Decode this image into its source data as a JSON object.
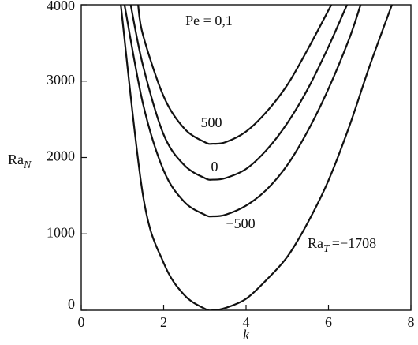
{
  "chart_data": {
    "type": "line",
    "annotation": "Pe = 0,1",
    "xlabel": "k",
    "ylabel": {
      "text": "Ra",
      "subscript": "N"
    },
    "curve_label_prefix": {
      "text": "Ra",
      "subscript": "T",
      "sign": "="
    },
    "series": [
      {
        "name": "500",
        "color": "#111111",
        "x": [
          1.38,
          1.5,
          2,
          2.5,
          3,
          3.2,
          3.5,
          4,
          4.5,
          5,
          5.5,
          6.07
        ],
        "values": [
          4000,
          3600,
          2800,
          2380,
          2200,
          2180,
          2200,
          2340,
          2600,
          2950,
          3420,
          4000
        ]
      },
      {
        "name": "0",
        "color": "#111111",
        "x": [
          1.2,
          1.5,
          2,
          2.5,
          3,
          3.2,
          3.5,
          4,
          4.5,
          5,
          5.5,
          6,
          6.45
        ],
        "values": [
          4000,
          3200,
          2300,
          1900,
          1730,
          1710,
          1730,
          1850,
          2100,
          2450,
          2900,
          3450,
          4000
        ]
      },
      {
        "name": "−500",
        "color": "#111111",
        "x": [
          1.05,
          1.5,
          2,
          2.5,
          3,
          3.2,
          3.5,
          4,
          4.5,
          5,
          5.5,
          6,
          6.5,
          6.78
        ],
        "values": [
          4000,
          2700,
          1830,
          1420,
          1250,
          1230,
          1250,
          1370,
          1580,
          1900,
          2350,
          2900,
          3550,
          4000
        ]
      },
      {
        "name": "−1708",
        "color": "#111111",
        "x": [
          0.96,
          1.5,
          2,
          2.5,
          3,
          3.2,
          3.5,
          4,
          4.5,
          5,
          5.5,
          6,
          6.5,
          7,
          7.54
        ],
        "values": [
          4000,
          1500,
          620,
          200,
          20,
          0,
          30,
          150,
          400,
          700,
          1150,
          1700,
          2400,
          3200,
          4000
        ]
      }
    ],
    "xlim": [
      0,
      8
    ],
    "xticks": [
      0,
      2,
      4,
      6,
      8
    ],
    "ylim": [
      0,
      4000
    ],
    "yticks": [
      0,
      1000,
      2000,
      3000,
      4000
    ]
  }
}
